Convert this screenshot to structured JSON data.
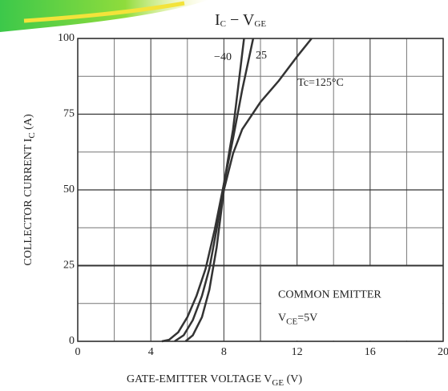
{
  "chart_data": {
    "type": "line",
    "title": [
      "I",
      "C",
      " − V",
      "GE"
    ],
    "xlabel": [
      "GATE-EMITTER VOLTAGE  V",
      "GE",
      "  (V)"
    ],
    "ylabel": [
      "COLLECTOR CURRENT  I",
      "C",
      "  (A)"
    ],
    "annotation": [
      [
        "COMMON EMITTER"
      ],
      [
        "V",
        "CE",
        "=5V"
      ]
    ],
    "xlim": [
      0,
      20
    ],
    "ylim": [
      0,
      100
    ],
    "xticks": [
      0,
      4,
      8,
      12,
      16,
      20
    ],
    "yticks": [
      0,
      25,
      50,
      75,
      100
    ],
    "xminorticks": [
      2,
      6,
      10,
      14,
      18
    ],
    "yminorticks": [
      12.5,
      37.5,
      62.5,
      87.5
    ],
    "grid": true,
    "series": [
      {
        "name": "−40",
        "color": "#333333",
        "x": [
          4.6,
          5,
          5.5,
          6,
          6.5,
          7,
          7.5,
          8,
          8.5,
          9.1
        ],
        "values": [
          0,
          0.5,
          3,
          8,
          15,
          24,
          37,
          52,
          70,
          100
        ]
      },
      {
        "name": "25",
        "color": "#333333",
        "x": [
          5.3,
          5.8,
          6.3,
          6.8,
          7.2,
          7.6,
          8,
          8.5,
          9,
          9.6
        ],
        "values": [
          0,
          2,
          7,
          15,
          24,
          37,
          52,
          67,
          83,
          100
        ]
      },
      {
        "name": "Tc=125°C",
        "color": "#333333",
        "x": [
          5.9,
          6.3,
          6.8,
          7.2,
          7.6,
          8,
          8.5,
          9,
          10,
          11,
          12,
          12.8
        ],
        "values": [
          0,
          2,
          8,
          17,
          31,
          50,
          62,
          70,
          79,
          86,
          94,
          100
        ]
      }
    ]
  }
}
